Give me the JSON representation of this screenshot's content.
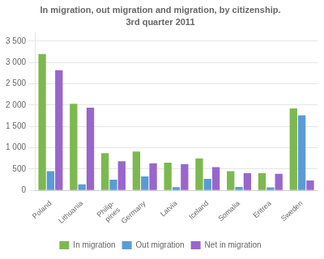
{
  "chart_data": {
    "type": "bar",
    "title": "In migration, out migration and migration, by citizenship.",
    "subtitle": "3rd quarter 2011",
    "categories": [
      "Poland",
      "Lithuania",
      "Philip-\npines",
      "Germany",
      "Latvia",
      "Iceland",
      "Somalia",
      "Eritrea",
      "Sweden"
    ],
    "series": [
      {
        "name": "In migration",
        "color": "#7db850",
        "values": [
          3200,
          2030,
          870,
          910,
          650,
          750,
          450,
          400,
          1920
        ]
      },
      {
        "name": "Out migration",
        "color": "#5b9bd5",
        "values": [
          450,
          140,
          250,
          325,
          75,
          270,
          80,
          70,
          1760
        ]
      },
      {
        "name": "Net in migration",
        "color": "#9966cc",
        "values": [
          2820,
          1940,
          680,
          635,
          615,
          545,
          400,
          385,
          230
        ]
      }
    ],
    "ylim": [
      0,
      3700
    ],
    "yticks": [
      0,
      500,
      {
        "value": 1000,
        "label": "1 000"
      },
      {
        "value": 1500,
        "label": "1 500"
      },
      {
        "value": 2000,
        "label": "2 000"
      },
      {
        "value": 2500,
        "label": "2 500"
      },
      {
        "value": 3000,
        "label": "3 000"
      },
      {
        "value": 3500,
        "label": "3 500"
      }
    ],
    "grid": true,
    "legend": "bottom"
  }
}
